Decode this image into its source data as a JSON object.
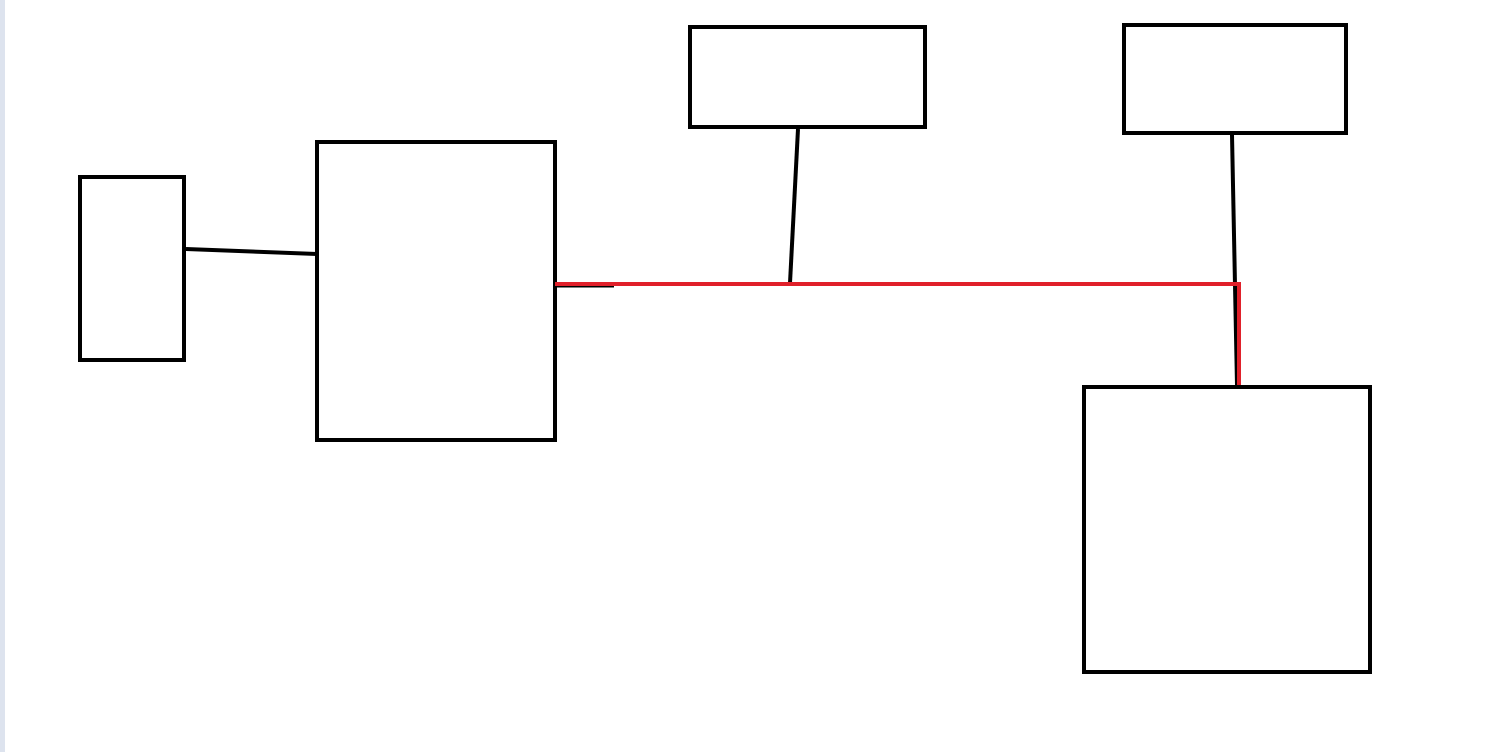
{
  "diagram": {
    "colors": {
      "background": "#ffffff",
      "box_stroke": "#000000",
      "connector": "#000000",
      "highlight": "#e0202a",
      "left_edge": "#dde3ee"
    },
    "boxes": [
      {
        "id": "box-small-left"
      },
      {
        "id": "box-center-left"
      },
      {
        "id": "box-top-middle"
      },
      {
        "id": "box-top-right"
      },
      {
        "id": "box-bottom-right"
      }
    ],
    "connectors": [
      {
        "from": "box-small-left",
        "to": "box-center-left",
        "style": "black"
      },
      {
        "from": "box-top-middle",
        "to": "highlighted-path",
        "style": "black"
      },
      {
        "from": "box-top-right",
        "to": "box-bottom-right",
        "style": "black"
      },
      {
        "from": "box-center-left",
        "to": "box-bottom-right",
        "style": "red"
      }
    ]
  }
}
